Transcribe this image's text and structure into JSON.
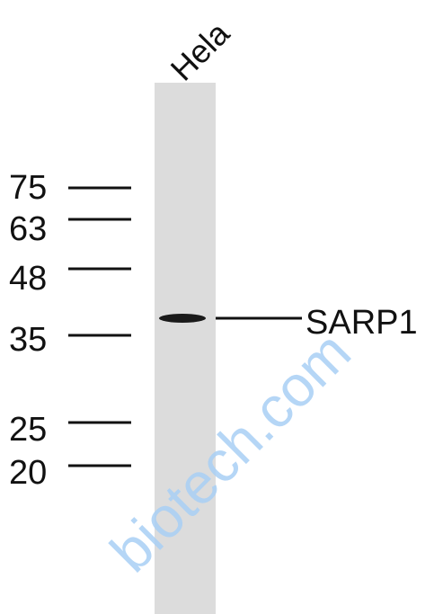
{
  "lane": {
    "label": "Hela"
  },
  "markers": [
    "75",
    "63",
    "48",
    "35",
    "25",
    "20"
  ],
  "band": {
    "label": "SARP1"
  },
  "watermark": "biotech.com"
}
